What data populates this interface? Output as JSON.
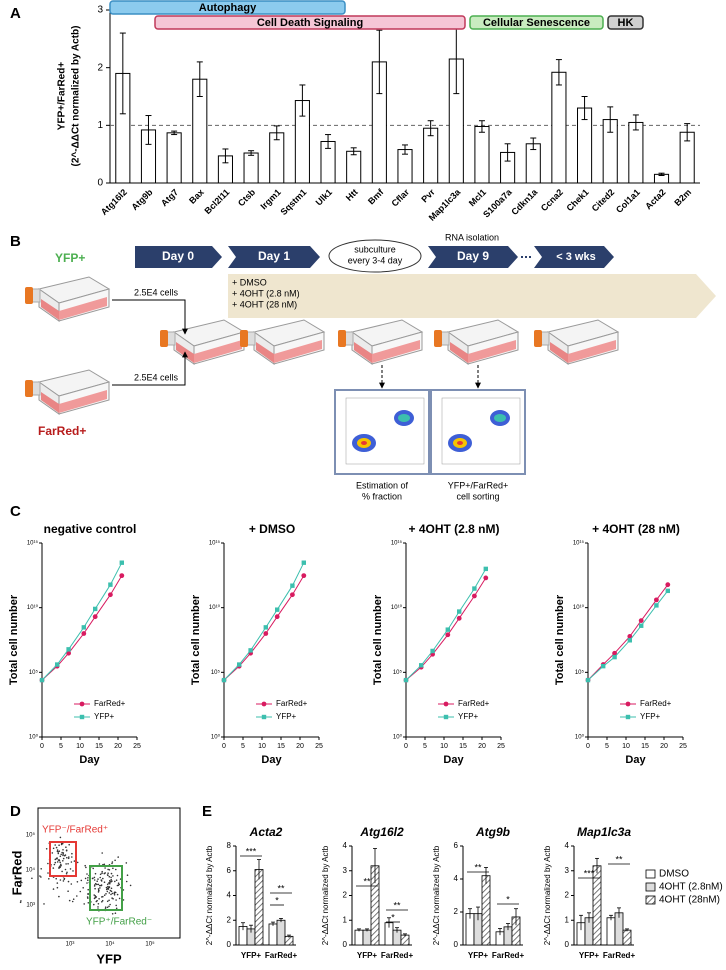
{
  "chart_data": [
    {
      "type": "bar",
      "panel": "A",
      "ylabel": [
        "YFP+/FarRed+",
        "(2^-ΔΔCt normalized by Actb)"
      ],
      "categories": [
        "Atg16l2",
        "Atg9b",
        "Atg7",
        "Bax",
        "Bcl2l11",
        "Ctsb",
        "Irgm1",
        "Sqstm1",
        "Ulk1",
        "Htt",
        "Bmf",
        "Cflar",
        "Pvr",
        "Map1lc3a",
        "Mcl1",
        "S100a7a",
        "Cdkn1a",
        "Ccna2",
        "Chek1",
        "Cited2",
        "Col1a1",
        "Acta2",
        "B2m"
      ],
      "values": [
        1.9,
        0.92,
        0.87,
        1.8,
        0.47,
        0.52,
        0.87,
        1.43,
        0.72,
        0.55,
        2.1,
        0.58,
        0.95,
        2.15,
        0.98,
        0.53,
        0.68,
        1.92,
        1.3,
        1.1,
        1.05,
        0.15,
        0.88
      ],
      "errors": [
        0.7,
        0.25,
        0.03,
        0.3,
        0.12,
        0.04,
        0.12,
        0.27,
        0.12,
        0.06,
        0.55,
        0.08,
        0.13,
        0.6,
        0.1,
        0.15,
        0.1,
        0.22,
        0.2,
        0.22,
        0.13,
        0.02,
        0.15
      ],
      "color": "#ffffff",
      "ylim": [
        0,
        3
      ],
      "yticks": [
        0,
        1,
        2,
        3
      ],
      "reference_line": 1,
      "groups": [
        {
          "label": "Autophagy",
          "color": "#8ccbee",
          "border": "#3b8fc4"
        },
        {
          "label": "Cell Death Signaling",
          "color": "#f5c6d6",
          "border": "#c0395a"
        },
        {
          "label": "Cellular Senescence",
          "color": "#c9ecc0",
          "border": "#4caf50"
        },
        {
          "label": "HK",
          "color": "#d0d0d0",
          "border": "#333333"
        }
      ]
    },
    {
      "type": "line",
      "panel": "C",
      "title": "negative control",
      "xlabel": "Day",
      "ylabel": "Total cell number",
      "log_y": true,
      "x": [
        0,
        4,
        7,
        11,
        14,
        18,
        21
      ],
      "xlim": [
        0,
        25
      ],
      "xticks": [
        0,
        5,
        10,
        15,
        20,
        25
      ],
      "ylim": [
        1,
        1000000000000000.0
      ],
      "yticks": [
        {
          "value": 1,
          "label": "10⁰"
        },
        {
          "value": 100000,
          "label": "10⁵"
        },
        {
          "value": 10000000000,
          "label": "10¹⁰"
        },
        {
          "value": 1000000000000000.0,
          "label": "10¹⁵"
        }
      ],
      "series": [
        {
          "name": "FarRed+",
          "color": "#d81b60",
          "marker": "circle",
          "values": [
            25000,
            300000,
            3000000,
            100000000,
            2000000000,
            100000000000,
            3000000000000
          ]
        },
        {
          "name": "YFP+",
          "color": "#3cbfae",
          "marker": "square",
          "values": [
            25000,
            400000,
            6000000,
            300000000,
            8000000000,
            600000000000,
            30000000000000
          ]
        }
      ]
    },
    {
      "type": "line",
      "title": "+ DMSO",
      "xlabel": "Day",
      "ylabel": "Total cell number",
      "log_y": true,
      "x": [
        0,
        4,
        7,
        11,
        14,
        18,
        21
      ],
      "xlim": [
        0,
        25
      ],
      "xticks": [
        0,
        5,
        10,
        15,
        20,
        25
      ],
      "ylim": [
        1,
        1000000000000000.0
      ],
      "yticks": [
        {
          "value": 1,
          "label": "10⁰"
        },
        {
          "value": 100000,
          "label": "10⁵"
        },
        {
          "value": 10000000000,
          "label": "10¹⁰"
        },
        {
          "value": 1000000000000000.0,
          "label": "10¹⁵"
        }
      ],
      "series": [
        {
          "name": "FarRed+",
          "color": "#d81b60",
          "marker": "circle",
          "values": [
            25000,
            300000,
            3000000,
            100000000,
            2000000000,
            100000000000,
            3000000000000
          ]
        },
        {
          "name": "YFP+",
          "color": "#3cbfae",
          "marker": "square",
          "values": [
            25000,
            400000,
            5000000,
            300000000,
            7000000000,
            500000000000,
            30000000000000
          ]
        }
      ]
    },
    {
      "type": "line",
      "title": "+ 4OHT (2.8 nM)",
      "xlabel": "Day",
      "ylabel": "Total cell number",
      "log_y": true,
      "x": [
        0,
        4,
        7,
        11,
        14,
        18,
        21
      ],
      "xlim": [
        0,
        25
      ],
      "xticks": [
        0,
        5,
        10,
        15,
        20,
        25
      ],
      "ylim": [
        1,
        1000000000000000.0
      ],
      "yticks": [
        {
          "value": 1,
          "label": "10⁰"
        },
        {
          "value": 100000,
          "label": "10⁵"
        },
        {
          "value": 10000000000,
          "label": "10¹⁰"
        },
        {
          "value": 1000000000000000.0,
          "label": "10¹⁵"
        }
      ],
      "series": [
        {
          "name": "FarRed+",
          "color": "#d81b60",
          "marker": "circle",
          "values": [
            25000,
            250000,
            2500000,
            80000000,
            1500000000,
            80000000000,
            2000000000000
          ]
        },
        {
          "name": "YFP+",
          "color": "#3cbfae",
          "marker": "square",
          "values": [
            25000,
            350000,
            4500000,
            200000000,
            5000000000,
            300000000000,
            10000000000000
          ]
        }
      ]
    },
    {
      "type": "line",
      "title": "+ 4OHT (28 nM)",
      "xlabel": "Day",
      "ylabel": "Total cell number",
      "log_y": true,
      "x": [
        0,
        4,
        7,
        11,
        14,
        18,
        21
      ],
      "xlim": [
        0,
        25
      ],
      "xticks": [
        0,
        5,
        10,
        15,
        20,
        25
      ],
      "ylim": [
        1,
        1000000000000000.0
      ],
      "yticks": [
        {
          "value": 1,
          "label": "10⁰"
        },
        {
          "value": 100000,
          "label": "10⁵"
        },
        {
          "value": 10000000000,
          "label": "10¹⁰"
        },
        {
          "value": 1000000000000000.0,
          "label": "10¹⁵"
        }
      ],
      "series": [
        {
          "name": "FarRed+",
          "color": "#d81b60",
          "marker": "circle",
          "values": [
            25000,
            400000,
            3000000,
            60000000,
            1000000000,
            40000000000,
            600000000000
          ]
        },
        {
          "name": "YFP+",
          "color": "#3cbfae",
          "marker": "square",
          "values": [
            25000,
            300000,
            1500000,
            30000000,
            400000000,
            15000000000,
            200000000000
          ]
        }
      ]
    },
    {
      "type": "grouped_bar",
      "panel": "E",
      "title": "Acta2",
      "ylabel": "2^-ΔΔCt normalized by Actb",
      "categories": [
        "YFP+",
        "FarRed+"
      ],
      "ylim": [
        0,
        8
      ],
      "yticks": [
        0,
        2,
        4,
        6,
        8
      ],
      "series": [
        {
          "color": "#ffffff",
          "values": [
            1.5,
            1.7
          ],
          "errors": [
            0.3,
            0.15
          ]
        },
        {
          "color": "#dddddd",
          "values": [
            1.3,
            2.0
          ],
          "errors": [
            0.3,
            0.15
          ]
        },
        {
          "color": "#ffffff",
          "pattern": "hatch",
          "values": [
            6.1,
            0.7
          ],
          "errors": [
            0.8,
            0.1
          ]
        }
      ],
      "annotations": [
        "***",
        "**",
        "*"
      ]
    },
    {
      "type": "grouped_bar",
      "title": "Atg16l2",
      "ylabel": "2^-ΔΔCt normalized by Actb",
      "categories": [
        "YFP+",
        "FarRed+"
      ],
      "ylim": [
        0,
        4
      ],
      "yticks": [
        0,
        1,
        2,
        3,
        4
      ],
      "series": [
        {
          "color": "#ffffff",
          "values": [
            0.6,
            0.9
          ],
          "errors": [
            0.05,
            0.2
          ]
        },
        {
          "color": "#dddddd",
          "values": [
            0.6,
            0.6
          ],
          "errors": [
            0.05,
            0.1
          ]
        },
        {
          "color": "#ffffff",
          "pattern": "hatch",
          "values": [
            3.2,
            0.4
          ],
          "errors": [
            0.7,
            0.05
          ]
        }
      ],
      "annotations": [
        "**",
        "**",
        "*"
      ]
    },
    {
      "type": "grouped_bar",
      "title": "Atg9b",
      "ylabel": "2^-ΔΔCt normalized by Actb",
      "categories": [
        "YFP+",
        "FarRed+"
      ],
      "ylim": [
        0,
        6
      ],
      "yticks": [
        0,
        2,
        4,
        6
      ],
      "series": [
        {
          "color": "#ffffff",
          "values": [
            1.9,
            0.8
          ],
          "errors": [
            0.3,
            0.2
          ]
        },
        {
          "color": "#dddddd",
          "values": [
            1.9,
            1.1
          ],
          "errors": [
            0.4,
            0.2
          ]
        },
        {
          "color": "#ffffff",
          "pattern": "hatch",
          "values": [
            4.2,
            1.7
          ],
          "errors": [
            0.5,
            0.5
          ]
        }
      ],
      "annotations": [
        "**",
        "*"
      ]
    },
    {
      "type": "grouped_bar",
      "title": "Map1lc3a",
      "ylabel": "2^-ΔΔCt normalized by Actb",
      "categories": [
        "YFP+",
        "FarRed+"
      ],
      "ylim": [
        0,
        4
      ],
      "yticks": [
        0,
        1,
        2,
        3,
        4
      ],
      "series": [
        {
          "name": "DMSO",
          "color": "#ffffff",
          "values": [
            0.9,
            1.1
          ],
          "errors": [
            0.3,
            0.1
          ]
        },
        {
          "name": "4OHT (2.8nM)",
          "color": "#dddddd",
          "values": [
            1.1,
            1.3
          ],
          "errors": [
            0.2,
            0.2
          ]
        },
        {
          "name": "4OHT (28nM)",
          "color": "#ffffff",
          "pattern": "hatch",
          "values": [
            3.2,
            0.6
          ],
          "errors": [
            0.3,
            0.05
          ]
        }
      ],
      "annotations": [
        "***",
        "**"
      ]
    }
  ],
  "diagram": {
    "panel": "B",
    "steps": [
      "Day 0",
      "Day 1",
      "Day 9",
      "< 3 wks"
    ],
    "subculture": [
      "subculture",
      "every 3-4 day"
    ],
    "rna": "RNA isolation",
    "treatments": [
      "+ DMSO",
      "+ 4OHT (2.8 nM)",
      "+ 4OHT (28 nM)"
    ],
    "populations": [
      "YFP+",
      "FarRed+"
    ],
    "seeding": [
      "2.5E4 cells",
      "2.5E4 cells"
    ],
    "flow_captions": [
      [
        "Estimation of",
        "% fraction"
      ],
      [
        "YFP+/FarRed+",
        "cell sorting"
      ]
    ]
  },
  "flow_plot": {
    "panel": "D",
    "ylabel": "FarRed",
    "xlabel": "YFP",
    "gates": [
      {
        "label": "YFP⁻/FarRed⁺",
        "color": "#e53935"
      },
      {
        "label": "YFP⁺/FarRed⁻",
        "color": "#43a047"
      }
    ],
    "xtick_labels": [
      "10³",
      "10⁴",
      "10⁵"
    ],
    "ytick_labels": [
      "10³",
      "10⁴",
      "10⁵"
    ]
  }
}
